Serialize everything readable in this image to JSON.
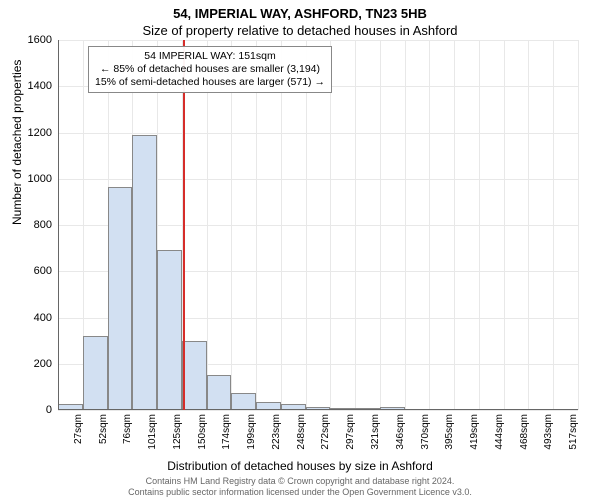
{
  "title_main": "54, IMPERIAL WAY, ASHFORD, TN23 5HB",
  "title_sub": "Size of property relative to detached houses in Ashford",
  "ylabel": "Number of detached properties",
  "xlabel": "Distribution of detached houses by size in Ashford",
  "footer_line1": "Contains HM Land Registry data © Crown copyright and database right 2024.",
  "footer_line2": "Contains public sector information licensed under the Open Government Licence v3.0.",
  "chart": {
    "type": "histogram",
    "ylim": [
      0,
      1600
    ],
    "ytick_step": 200,
    "yticks": [
      0,
      200,
      400,
      600,
      800,
      1000,
      1200,
      1400,
      1600
    ],
    "x_categories": [
      "27sqm",
      "52sqm",
      "76sqm",
      "101sqm",
      "125sqm",
      "150sqm",
      "174sqm",
      "199sqm",
      "223sqm",
      "248sqm",
      "272sqm",
      "297sqm",
      "321sqm",
      "346sqm",
      "370sqm",
      "395sqm",
      "419sqm",
      "444sqm",
      "468sqm",
      "493sqm",
      "517sqm"
    ],
    "values": [
      25,
      320,
      965,
      1190,
      690,
      300,
      150,
      75,
      35,
      25,
      15,
      10,
      8,
      12,
      5,
      5,
      3,
      2,
      2,
      2,
      1
    ],
    "bar_fill": "#d2e0f2",
    "bar_stroke": "#888888",
    "background_color": "#ffffff",
    "grid_color": "#e8e8e8",
    "axis_color": "#666666",
    "reference_line": {
      "x_value": "151sqm",
      "x_index_after": 5,
      "color": "#d62d2a",
      "width": 2
    },
    "annotation": {
      "line1": "54 IMPERIAL WAY: 151sqm",
      "line2": "← 85% of detached houses are smaller (3,194)",
      "line3": "15% of semi-detached houses are larger (571) →",
      "border_color": "#888888",
      "bg": "#ffffff"
    },
    "title_fontsize": 13,
    "label_fontsize": 12,
    "tick_fontsize": 11
  }
}
